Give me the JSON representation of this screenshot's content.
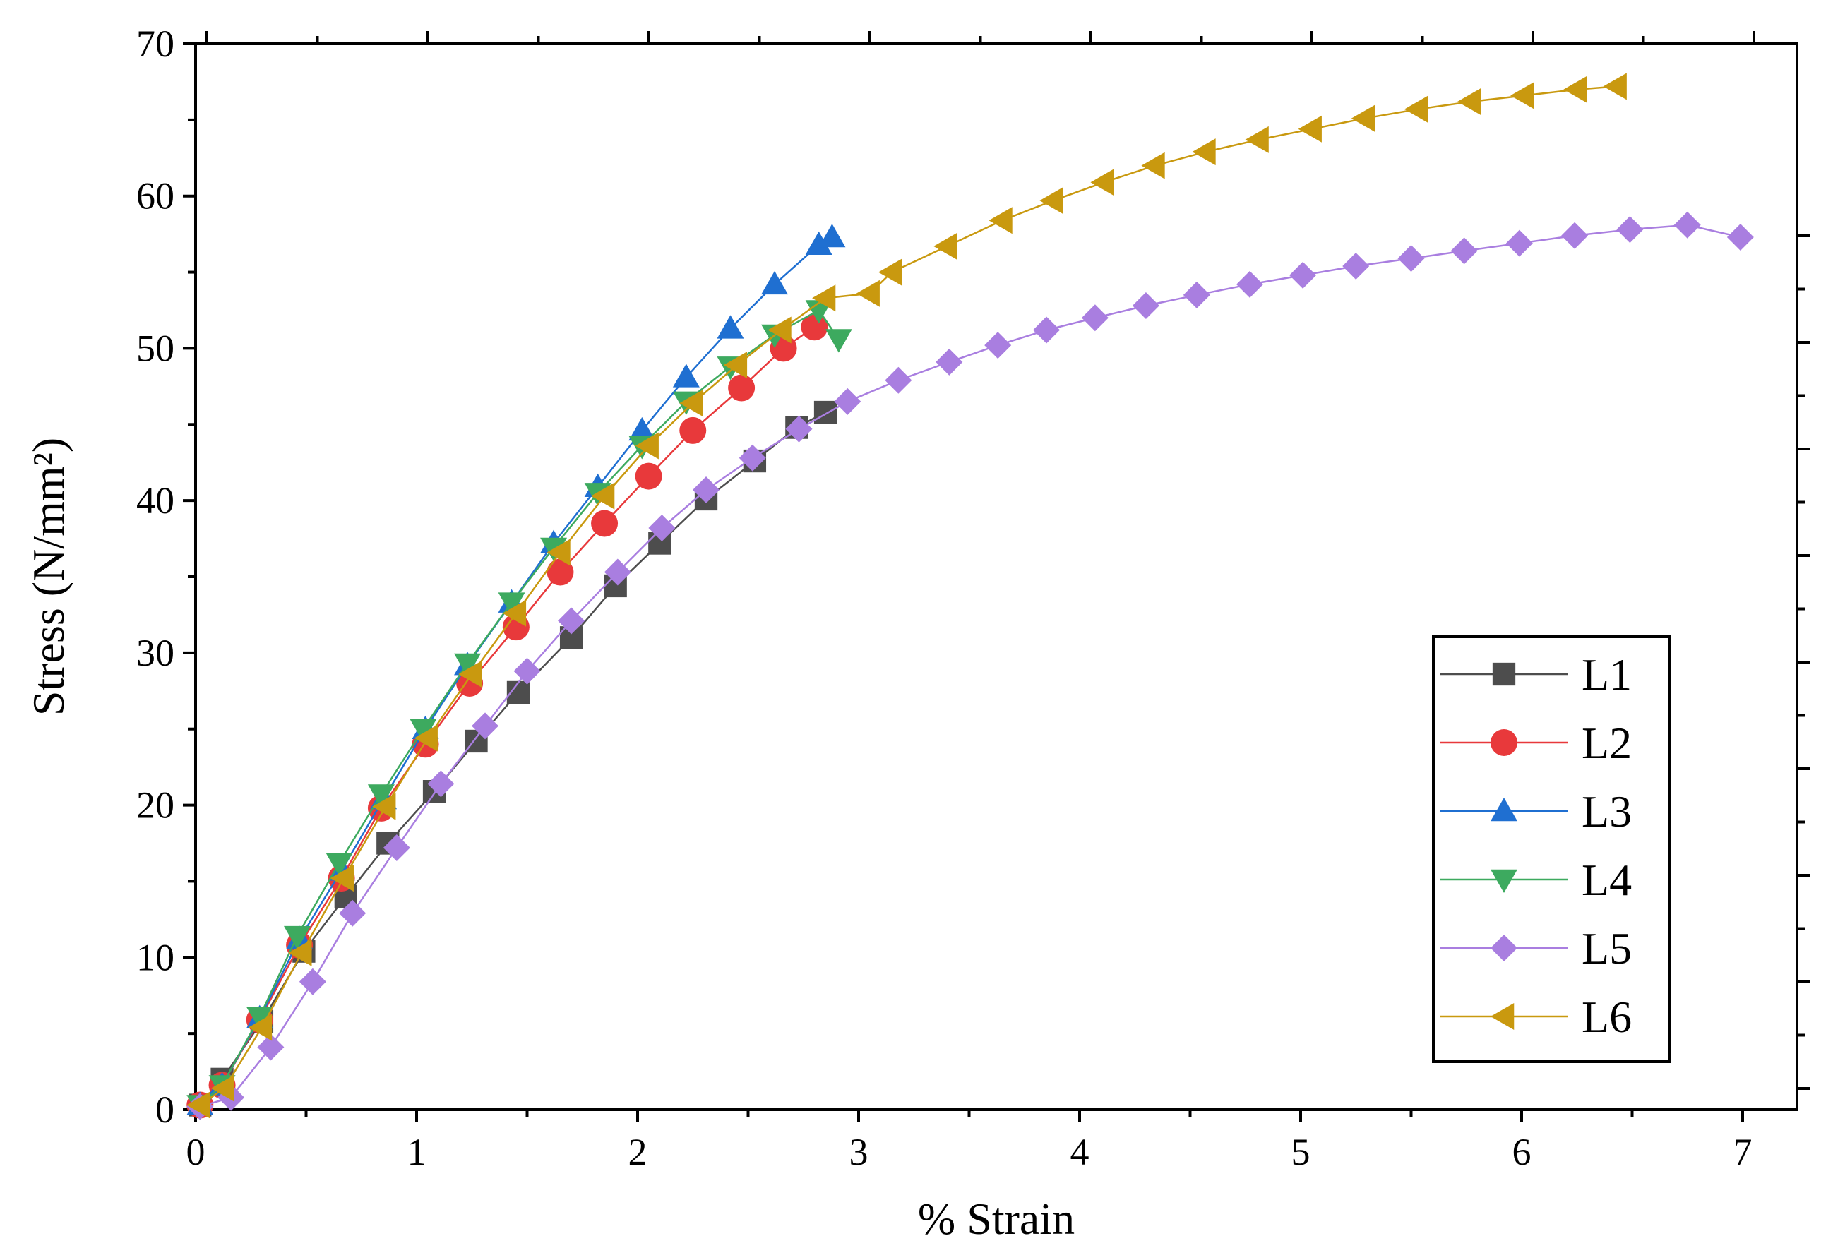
{
  "chart_data": {
    "type": "line",
    "title": "",
    "xlabel": "% Strain",
    "ylabel": "Stress (N/mm²)",
    "xlim": [
      0,
      7.25
    ],
    "ylim": [
      0,
      70
    ],
    "x_ticks": [
      0,
      1,
      2,
      3,
      4,
      5,
      6,
      7
    ],
    "y_ticks": [
      0,
      10,
      20,
      30,
      40,
      50,
      60,
      70
    ],
    "grid": false,
    "legend_position": "bottom-right",
    "series": [
      {
        "name": "L1",
        "color": "#4d4d4d",
        "marker": "square",
        "x": [
          0.02,
          0.12,
          0.3,
          0.49,
          0.68,
          0.87,
          1.08,
          1.27,
          1.46,
          1.7,
          1.9,
          2.1,
          2.31,
          2.53,
          2.72,
          2.85
        ],
        "y": [
          0.3,
          2.0,
          5.8,
          10.4,
          14.0,
          17.5,
          20.9,
          24.2,
          27.4,
          31.0,
          34.4,
          37.2,
          40.1,
          42.6,
          44.8,
          45.8
        ]
      },
      {
        "name": "L2",
        "color": "#e8393b",
        "marker": "circle",
        "x": [
          0.02,
          0.12,
          0.29,
          0.47,
          0.66,
          0.84,
          1.04,
          1.24,
          1.45,
          1.65,
          1.85,
          2.05,
          2.25,
          2.47,
          2.66,
          2.8
        ],
        "y": [
          0.3,
          1.6,
          5.9,
          10.8,
          15.2,
          19.8,
          24.0,
          28.0,
          31.7,
          35.3,
          38.5,
          41.6,
          44.6,
          47.4,
          50.0,
          51.4
        ]
      },
      {
        "name": "L3",
        "color": "#1f6fd1",
        "marker": "triangle-up",
        "x": [
          0.02,
          0.12,
          0.29,
          0.47,
          0.66,
          0.85,
          1.04,
          1.23,
          1.43,
          1.62,
          1.82,
          2.02,
          2.22,
          2.42,
          2.62,
          2.82,
          2.88
        ],
        "y": [
          0.3,
          1.6,
          6.0,
          11.2,
          15.7,
          20.4,
          25.0,
          29.2,
          33.3,
          37.2,
          40.9,
          44.6,
          48.1,
          51.3,
          54.2,
          56.8,
          57.3
        ]
      },
      {
        "name": "L4",
        "color": "#3daa5f",
        "marker": "triangle-down",
        "x": [
          0.02,
          0.12,
          0.29,
          0.46,
          0.65,
          0.84,
          1.03,
          1.23,
          1.43,
          1.62,
          1.82,
          2.02,
          2.22,
          2.42,
          2.62,
          2.82,
          2.91
        ],
        "y": [
          0.3,
          1.6,
          6.1,
          11.4,
          16.2,
          20.7,
          25.0,
          29.3,
          33.3,
          36.9,
          40.5,
          43.6,
          46.5,
          48.8,
          50.9,
          52.5,
          50.6
        ]
      },
      {
        "name": "L5",
        "color": "#a97ee0",
        "marker": "diamond",
        "x": [
          0.02,
          0.16,
          0.34,
          0.53,
          0.71,
          0.91,
          1.11,
          1.31,
          1.5,
          1.7,
          1.91,
          2.11,
          2.31,
          2.52,
          2.73,
          2.95,
          3.18,
          3.41,
          3.63,
          3.85,
          4.07,
          4.3,
          4.53,
          4.77,
          5.01,
          5.25,
          5.5,
          5.74,
          5.99,
          6.24,
          6.49,
          6.75,
          6.99
        ],
        "y": [
          0.2,
          0.8,
          4.1,
          8.4,
          12.9,
          17.2,
          21.4,
          25.2,
          28.8,
          32.1,
          35.3,
          38.2,
          40.7,
          42.8,
          44.7,
          46.5,
          47.9,
          49.1,
          50.2,
          51.2,
          52.0,
          52.8,
          53.5,
          54.2,
          54.8,
          55.4,
          55.9,
          56.4,
          56.9,
          57.4,
          57.8,
          58.1,
          57.3
        ]
      },
      {
        "name": "L6",
        "color": "#c9990f",
        "marker": "triangle-left",
        "x": [
          0.02,
          0.13,
          0.3,
          0.48,
          0.67,
          0.86,
          1.05,
          1.25,
          1.45,
          1.65,
          1.85,
          2.05,
          2.25,
          2.45,
          2.65,
          2.85,
          3.05,
          3.15,
          3.4,
          3.65,
          3.88,
          4.11,
          4.34,
          4.57,
          4.81,
          5.05,
          5.29,
          5.53,
          5.77,
          6.01,
          6.25,
          6.43
        ],
        "y": [
          0.3,
          1.4,
          5.4,
          10.3,
          15.2,
          19.9,
          24.4,
          28.6,
          32.6,
          36.6,
          40.3,
          43.6,
          46.4,
          48.9,
          51.2,
          53.3,
          53.6,
          55.0,
          56.7,
          58.4,
          59.7,
          60.9,
          62.0,
          62.9,
          63.7,
          64.4,
          65.1,
          65.7,
          66.2,
          66.6,
          67.0,
          67.2
        ]
      }
    ]
  }
}
